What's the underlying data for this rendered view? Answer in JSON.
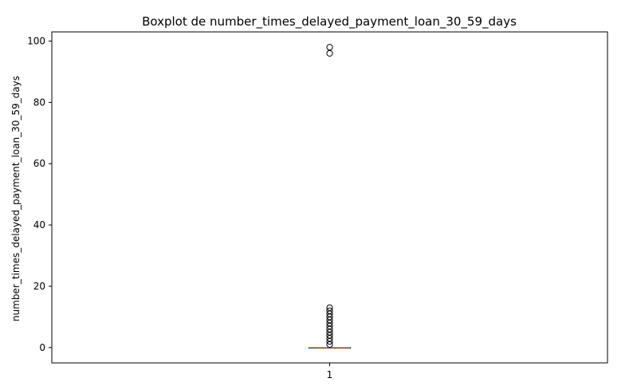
{
  "chart_data": {
    "type": "boxplot",
    "title": "Boxplot de number_times_delayed_payment_loan_30_59_days",
    "xlabel": "",
    "ylabel": "number_times_delayed_payment_loan_30_59_days",
    "categories": [
      "1"
    ],
    "ylim": [
      -5,
      103
    ],
    "yticks": [
      0,
      20,
      40,
      60,
      80,
      100
    ],
    "grid": false,
    "box": {
      "q1": 0,
      "median": 0,
      "q3": 0,
      "whisker_low": 0,
      "whisker_high": 0,
      "outliers": [
        1,
        2,
        3,
        4,
        5,
        6,
        7,
        8,
        9,
        10,
        11,
        12,
        13,
        96,
        98
      ]
    },
    "colors": {
      "median": "#e8823a",
      "box": "#000000",
      "outlier": "#000000"
    }
  }
}
